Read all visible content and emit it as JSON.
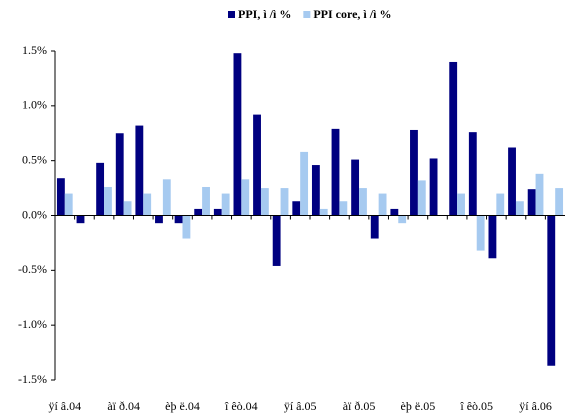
{
  "chart_data": {
    "type": "bar",
    "categories": [
      "ÿí â.04",
      null,
      null,
      "àï ð.04",
      null,
      null,
      "èþ ë.04",
      null,
      null,
      "î êò.04",
      null,
      null,
      "ÿí â.05",
      null,
      null,
      "àï ð.05",
      null,
      null,
      "èþ ë.05",
      null,
      null,
      "î êò.05",
      null,
      null,
      "ÿí â.06",
      null
    ],
    "series": [
      {
        "name": "PPI, ì /ì %",
        "color": "#000080",
        "values": [
          0.34,
          -0.07,
          0.48,
          0.75,
          0.82,
          -0.07,
          -0.07,
          0.06,
          0.06,
          1.48,
          0.92,
          -0.46,
          0.13,
          0.46,
          0.79,
          0.51,
          -0.21,
          0.06,
          0.78,
          0.52,
          1.4,
          0.76,
          -0.39,
          0.62,
          0.24,
          -1.37
        ]
      },
      {
        "name": "PPI core, ì /ì %",
        "color": "#a6caf0",
        "values": [
          0.2,
          0,
          0.26,
          0.13,
          0.2,
          0.33,
          -0.21,
          0.26,
          0.2,
          0.33,
          0.25,
          0.25,
          0.58,
          0.06,
          0.13,
          0.25,
          0.2,
          -0.07,
          0.32,
          0,
          0.2,
          -0.32,
          0.2,
          0.13,
          0.38,
          0.25
        ]
      }
    ],
    "ylim": [
      -1.5,
      1.5
    ],
    "yticks": [
      {
        "value": -1.5,
        "label": "-1.5%"
      },
      {
        "value": -1.0,
        "label": "-1.0%"
      },
      {
        "value": -0.5,
        "label": "-0.5%"
      },
      {
        "value": 0,
        "label": "0.0%"
      },
      {
        "value": 0.5,
        "label": "0.5%"
      },
      {
        "value": 1.0,
        "label": "1.0%"
      },
      {
        "value": 1.5,
        "label": "1.5%"
      }
    ],
    "legend": "top"
  }
}
